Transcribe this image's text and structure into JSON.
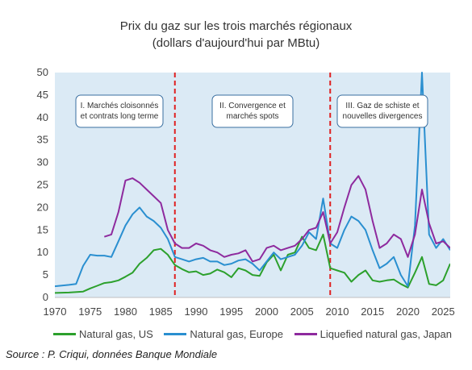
{
  "chart_data": {
    "type": "line",
    "title": "Prix du gaz sur les trois marchés régionaux",
    "subtitle": "(dollars d'aujourd'hui par MBtu)",
    "xlabel": "",
    "ylabel": "",
    "xlim": [
      1970,
      2026
    ],
    "ylim": [
      0,
      50
    ],
    "x_ticks": [
      "1970",
      "1975",
      "1980",
      "1985",
      "1990",
      "1995",
      "2000",
      "2005",
      "2010",
      "2015",
      "2020",
      "2025"
    ],
    "y_ticks": [
      "0",
      "5",
      "10",
      "15",
      "20",
      "25",
      "30",
      "35",
      "40",
      "45",
      "50"
    ],
    "grid": false,
    "legend_position": "bottom",
    "background_color": "#dbeaf5",
    "period_dividers": [
      1987,
      2009
    ],
    "period_labels": [
      {
        "lines": [
          "I. Marchés cloisonnés",
          "et contrats long terme"
        ]
      },
      {
        "lines": [
          "II. Convergence et",
          "marchés spots"
        ]
      },
      {
        "lines": [
          "III. Gaz de schiste et",
          "nouvelles divergences"
        ]
      }
    ],
    "series": [
      {
        "name": "Natural gas, US",
        "color": "#2ca02c",
        "points": [
          [
            1970,
            1.0
          ],
          [
            1972,
            1.1
          ],
          [
            1974,
            1.3
          ],
          [
            1975,
            2.0
          ],
          [
            1976,
            2.6
          ],
          [
            1977,
            3.2
          ],
          [
            1978,
            3.4
          ],
          [
            1979,
            3.8
          ],
          [
            1980,
            4.6
          ],
          [
            1981,
            5.5
          ],
          [
            1982,
            7.5
          ],
          [
            1983,
            8.8
          ],
          [
            1984,
            10.5
          ],
          [
            1985,
            10.8
          ],
          [
            1986,
            9.5
          ],
          [
            1987,
            7.2
          ],
          [
            1988,
            6.3
          ],
          [
            1989,
            5.6
          ],
          [
            1990,
            5.8
          ],
          [
            1991,
            5.0
          ],
          [
            1992,
            5.3
          ],
          [
            1993,
            6.2
          ],
          [
            1994,
            5.6
          ],
          [
            1995,
            4.5
          ],
          [
            1996,
            6.5
          ],
          [
            1997,
            6.0
          ],
          [
            1998,
            5.0
          ],
          [
            1999,
            4.8
          ],
          [
            2000,
            7.8
          ],
          [
            2001,
            9.5
          ],
          [
            2002,
            6.0
          ],
          [
            2003,
            9.5
          ],
          [
            2004,
            10.0
          ],
          [
            2005,
            13.5
          ],
          [
            2006,
            11.0
          ],
          [
            2007,
            10.5
          ],
          [
            2008,
            14.0
          ],
          [
            2009,
            6.5
          ],
          [
            2010,
            6.0
          ],
          [
            2011,
            5.5
          ],
          [
            2012,
            3.5
          ],
          [
            2013,
            5.0
          ],
          [
            2014,
            6.0
          ],
          [
            2015,
            3.8
          ],
          [
            2016,
            3.5
          ],
          [
            2017,
            3.8
          ],
          [
            2018,
            4.0
          ],
          [
            2019,
            3.0
          ],
          [
            2020,
            2.2
          ],
          [
            2021,
            5.5
          ],
          [
            2022,
            9.0
          ],
          [
            2023,
            3.0
          ],
          [
            2024,
            2.7
          ],
          [
            2025,
            3.8
          ],
          [
            2026,
            7.5
          ]
        ]
      },
      {
        "name": "Natural gas, Europe",
        "color": "#2a8fd0",
        "points": [
          [
            1970,
            2.5
          ],
          [
            1972,
            2.8
          ],
          [
            1973,
            3.0
          ],
          [
            1974,
            7.0
          ],
          [
            1975,
            9.5
          ],
          [
            1976,
            9.3
          ],
          [
            1977,
            9.3
          ],
          [
            1978,
            9.0
          ],
          [
            1979,
            12.5
          ],
          [
            1980,
            16.0
          ],
          [
            1981,
            18.5
          ],
          [
            1982,
            20.0
          ],
          [
            1983,
            18.0
          ],
          [
            1984,
            17.0
          ],
          [
            1985,
            15.5
          ],
          [
            1986,
            13.0
          ],
          [
            1987,
            9.0
          ],
          [
            1988,
            8.5
          ],
          [
            1989,
            8.0
          ],
          [
            1990,
            8.5
          ],
          [
            1991,
            8.8
          ],
          [
            1992,
            8.0
          ],
          [
            1993,
            8.0
          ],
          [
            1994,
            7.2
          ],
          [
            1995,
            7.5
          ],
          [
            1996,
            8.2
          ],
          [
            1997,
            8.5
          ],
          [
            1998,
            7.5
          ],
          [
            1999,
            6.0
          ],
          [
            2000,
            8.0
          ],
          [
            2001,
            10.0
          ],
          [
            2002,
            8.5
          ],
          [
            2003,
            9.0
          ],
          [
            2004,
            9.5
          ],
          [
            2005,
            11.5
          ],
          [
            2006,
            14.5
          ],
          [
            2007,
            13.0
          ],
          [
            2008,
            22.0
          ],
          [
            2009,
            12.0
          ],
          [
            2010,
            11.0
          ],
          [
            2011,
            15.0
          ],
          [
            2012,
            18.0
          ],
          [
            2013,
            17.0
          ],
          [
            2014,
            15.0
          ],
          [
            2015,
            10.5
          ],
          [
            2016,
            6.5
          ],
          [
            2017,
            7.5
          ],
          [
            2018,
            9.0
          ],
          [
            2019,
            5.0
          ],
          [
            2020,
            2.5
          ],
          [
            2021,
            16.0
          ],
          [
            2022,
            50.0
          ],
          [
            2023,
            14.0
          ],
          [
            2024,
            11.0
          ],
          [
            2025,
            13.0
          ],
          [
            2026,
            10.5
          ]
        ]
      },
      {
        "name": "Liquefied natural gas, Japan",
        "color": "#8e2a9e",
        "points": [
          [
            1977,
            13.5
          ],
          [
            1978,
            14.0
          ],
          [
            1979,
            19.0
          ],
          [
            1980,
            26.0
          ],
          [
            1981,
            26.5
          ],
          [
            1982,
            25.5
          ],
          [
            1983,
            24.0
          ],
          [
            1984,
            22.5
          ],
          [
            1985,
            21.0
          ],
          [
            1986,
            15.0
          ],
          [
            1987,
            12.0
          ],
          [
            1988,
            11.0
          ],
          [
            1989,
            11.0
          ],
          [
            1990,
            12.0
          ],
          [
            1991,
            11.5
          ],
          [
            1992,
            10.5
          ],
          [
            1993,
            10.0
          ],
          [
            1994,
            9.0
          ],
          [
            1995,
            9.5
          ],
          [
            1996,
            9.8
          ],
          [
            1997,
            10.5
          ],
          [
            1998,
            8.0
          ],
          [
            1999,
            8.5
          ],
          [
            2000,
            11.0
          ],
          [
            2001,
            11.5
          ],
          [
            2002,
            10.5
          ],
          [
            2003,
            11.0
          ],
          [
            2004,
            11.5
          ],
          [
            2005,
            13.0
          ],
          [
            2006,
            15.0
          ],
          [
            2007,
            15.5
          ],
          [
            2008,
            19.0
          ],
          [
            2009,
            12.0
          ],
          [
            2010,
            14.5
          ],
          [
            2011,
            20.0
          ],
          [
            2012,
            25.0
          ],
          [
            2013,
            27.0
          ],
          [
            2014,
            24.0
          ],
          [
            2015,
            17.0
          ],
          [
            2016,
            11.0
          ],
          [
            2017,
            12.0
          ],
          [
            2018,
            14.0
          ],
          [
            2019,
            13.0
          ],
          [
            2020,
            9.0
          ],
          [
            2021,
            14.0
          ],
          [
            2022,
            24.0
          ],
          [
            2023,
            16.5
          ],
          [
            2024,
            12.0
          ],
          [
            2025,
            12.5
          ],
          [
            2026,
            11.0
          ]
        ]
      }
    ],
    "source": "Source : P. Criqui, données Banque Mondiale"
  }
}
